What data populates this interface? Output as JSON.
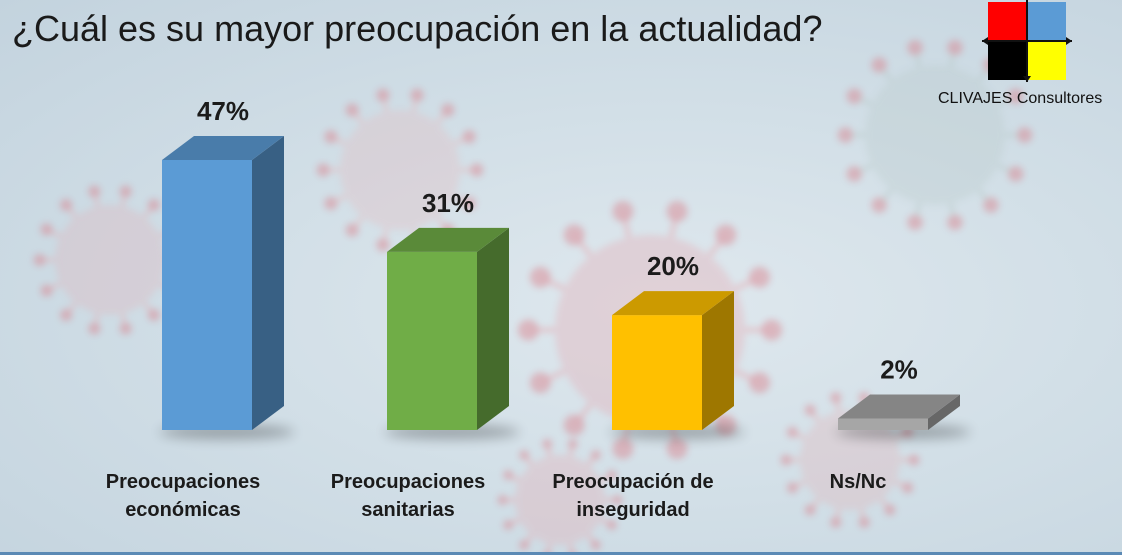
{
  "title": "¿Cuál es su mayor preocupación en la actualidad?",
  "brand": "CLIVAJES Consultores",
  "logo_colors": [
    "#ff0000",
    "#5b9bd5",
    "#000000",
    "#ffff00"
  ],
  "chart_data": {
    "type": "bar",
    "style": "3d-column",
    "categories": [
      [
        "Preocupaciones",
        "económicas"
      ],
      [
        "Preocupaciones",
        "sanitarias"
      ],
      [
        "Preocupación de",
        "inseguridad"
      ],
      [
        "Ns/Nc"
      ]
    ],
    "values": [
      47,
      31,
      20,
      2
    ],
    "value_labels": [
      "47%",
      "31%",
      "20%",
      "2%"
    ],
    "colors": [
      "#5b9bd5",
      "#70ad47",
      "#ffc000",
      "#a6a6a6"
    ],
    "ylim": [
      0,
      47
    ],
    "grid": false,
    "legend": "none"
  }
}
